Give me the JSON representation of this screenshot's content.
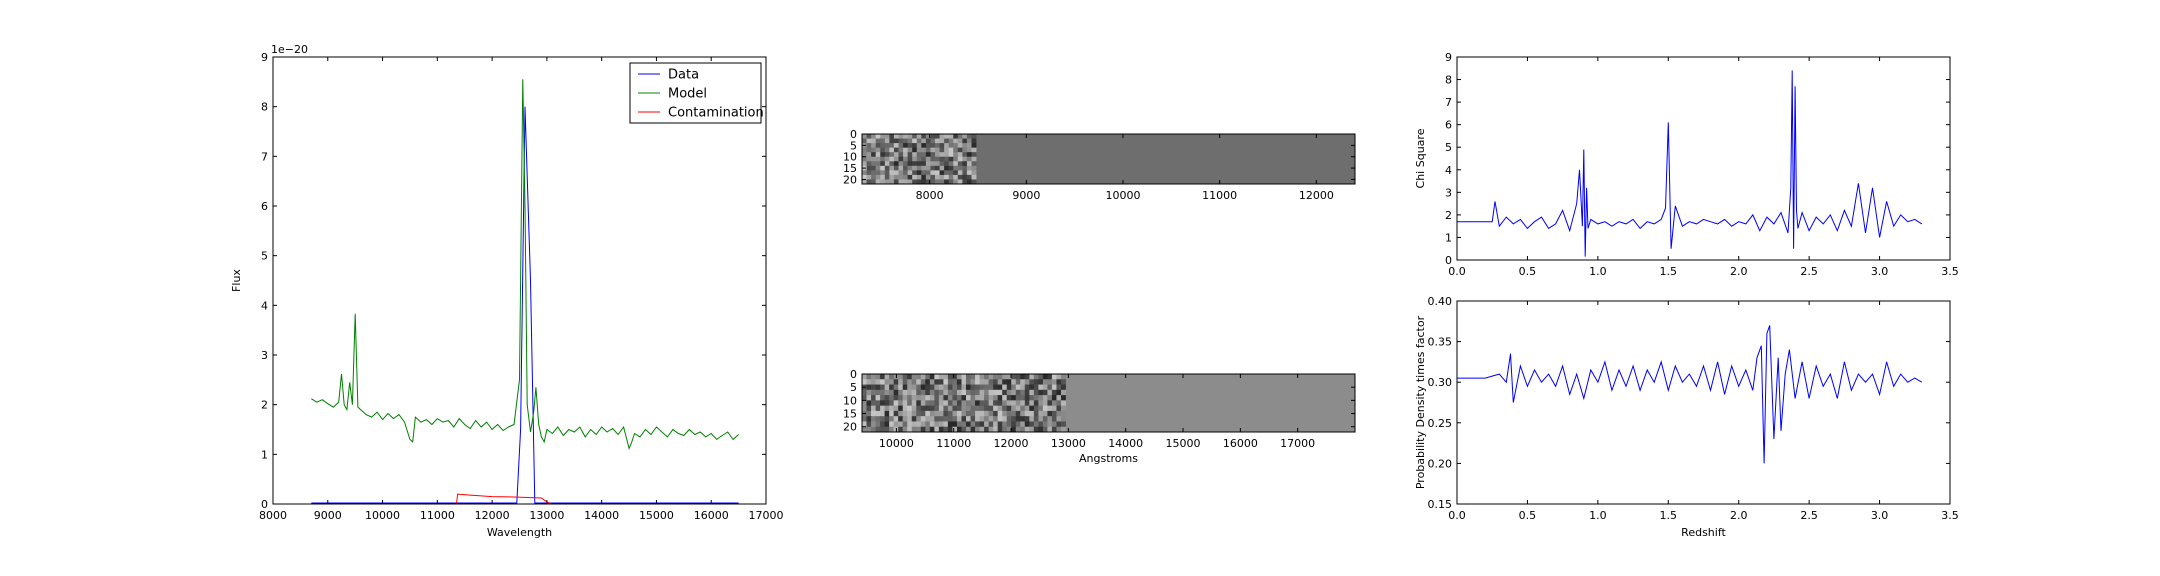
{
  "chart_data": [
    {
      "id": "spectrum",
      "type": "line",
      "xlabel": "Wavelength",
      "ylabel": "Flux",
      "offset_text": "1e−20",
      "xlim": [
        8000,
        17000
      ],
      "ylim": [
        0,
        9
      ],
      "xticks": [
        8000,
        9000,
        10000,
        11000,
        12000,
        13000,
        14000,
        15000,
        16000,
        17000
      ],
      "yticks": [
        0,
        1,
        2,
        3,
        4,
        5,
        6,
        7,
        8,
        9
      ],
      "legend": {
        "placement": "top-right",
        "entries": [
          "Data",
          "Model",
          "Contamination"
        ]
      },
      "series": [
        {
          "name": "Data",
          "color": "#0000ff",
          "x": [
            8700,
            12450,
            12520,
            12600,
            12700,
            12780,
            13000,
            16500
          ],
          "y": [
            0.02,
            0.02,
            1.5,
            8.0,
            4.5,
            0.02,
            0.02,
            0.02
          ]
        },
        {
          "name": "Model",
          "color": "#008000",
          "x": [
            8700,
            8800,
            8900,
            9000,
            9100,
            9200,
            9250,
            9300,
            9350,
            9400,
            9450,
            9500,
            9550,
            9600,
            9650,
            9700,
            9800,
            9900,
            10000,
            10100,
            10200,
            10300,
            10400,
            10500,
            10550,
            10600,
            10700,
            10800,
            10900,
            11000,
            11100,
            11200,
            11300,
            11400,
            11500,
            11600,
            11700,
            11800,
            11900,
            12000,
            12100,
            12200,
            12300,
            12400,
            12500,
            12560,
            12600,
            12640,
            12700,
            12760,
            12800,
            12850,
            12900,
            12950,
            13000,
            13100,
            13200,
            13300,
            13400,
            13500,
            13600,
            13700,
            13800,
            13900,
            14000,
            14100,
            14200,
            14300,
            14400,
            14500,
            14550,
            14600,
            14700,
            14800,
            14900,
            15000,
            15100,
            15200,
            15300,
            15400,
            15500,
            15600,
            15700,
            15800,
            15900,
            16000,
            16100,
            16200,
            16300,
            16400,
            16500
          ],
          "y": [
            2.12,
            2.05,
            2.1,
            2.02,
            1.95,
            2.05,
            2.62,
            2.0,
            1.9,
            2.45,
            2.0,
            3.83,
            1.95,
            1.9,
            1.85,
            1.8,
            1.75,
            1.85,
            1.7,
            1.82,
            1.72,
            1.8,
            1.65,
            1.3,
            1.25,
            1.75,
            1.65,
            1.7,
            1.6,
            1.72,
            1.65,
            1.68,
            1.55,
            1.72,
            1.6,
            1.52,
            1.68,
            1.55,
            1.65,
            1.5,
            1.6,
            1.48,
            1.55,
            1.6,
            2.5,
            8.55,
            6.0,
            2.0,
            1.45,
            1.85,
            2.35,
            1.6,
            1.35,
            1.25,
            1.5,
            1.42,
            1.55,
            1.38,
            1.5,
            1.45,
            1.55,
            1.35,
            1.5,
            1.4,
            1.55,
            1.45,
            1.52,
            1.4,
            1.55,
            1.12,
            1.25,
            1.42,
            1.35,
            1.5,
            1.4,
            1.55,
            1.45,
            1.35,
            1.5,
            1.42,
            1.38,
            1.5,
            1.4,
            1.45,
            1.35,
            1.42,
            1.3,
            1.38,
            1.45,
            1.3,
            1.4
          ]
        },
        {
          "name": "Contamination",
          "color": "#ff0000",
          "x": [
            8700,
            11350,
            11370,
            11600,
            12000,
            12400,
            12900,
            13000,
            13100,
            16500
          ],
          "y": [
            0.0,
            0.0,
            0.2,
            0.18,
            0.15,
            0.14,
            0.12,
            0.04,
            0.0,
            0.0
          ]
        }
      ]
    },
    {
      "id": "image-top",
      "type": "heatmap",
      "xlim": [
        7300,
        12400
      ],
      "ylim": [
        22,
        0
      ],
      "xticks": [
        8000,
        9000,
        10000,
        11000,
        12000
      ],
      "yticks": [
        0,
        5,
        10,
        15,
        20
      ],
      "xlabel": "",
      "noise_end": 8480,
      "background": "#6e6e6e"
    },
    {
      "id": "image-bottom",
      "type": "heatmap",
      "xlim": [
        9400,
        18000
      ],
      "ylim": [
        22,
        0
      ],
      "xticks": [
        10000,
        11000,
        12000,
        13000,
        14000,
        15000,
        16000,
        17000
      ],
      "yticks": [
        0,
        5,
        10,
        15,
        20
      ],
      "xlabel": "Angstroms",
      "noise_end": 12950,
      "background": "#8c8c8c"
    },
    {
      "id": "chisq",
      "type": "line",
      "xlabel": "",
      "ylabel": "Chi Square",
      "xlim": [
        0.0,
        3.5
      ],
      "ylim": [
        0,
        9
      ],
      "xticks": [
        0.0,
        0.5,
        1.0,
        1.5,
        2.0,
        2.5,
        3.0,
        3.5
      ],
      "yticks": [
        0,
        1,
        2,
        3,
        4,
        5,
        6,
        7,
        8,
        9
      ],
      "series": [
        {
          "color": "#0000ff",
          "x": [
            0.0,
            0.2,
            0.25,
            0.27,
            0.3,
            0.35,
            0.4,
            0.45,
            0.5,
            0.55,
            0.6,
            0.65,
            0.7,
            0.75,
            0.8,
            0.85,
            0.87,
            0.89,
            0.9,
            0.91,
            0.92,
            0.93,
            0.95,
            1.0,
            1.05,
            1.1,
            1.15,
            1.2,
            1.25,
            1.3,
            1.35,
            1.4,
            1.45,
            1.48,
            1.5,
            1.52,
            1.55,
            1.6,
            1.65,
            1.7,
            1.75,
            1.8,
            1.85,
            1.9,
            1.95,
            2.0,
            2.05,
            2.1,
            2.15,
            2.2,
            2.25,
            2.3,
            2.35,
            2.37,
            2.38,
            2.39,
            2.4,
            2.41,
            2.42,
            2.45,
            2.5,
            2.55,
            2.6,
            2.65,
            2.7,
            2.75,
            2.8,
            2.85,
            2.9,
            2.95,
            3.0,
            3.05,
            3.1,
            3.15,
            3.2,
            3.25,
            3.3
          ],
          "y": [
            1.7,
            1.7,
            1.7,
            2.6,
            1.5,
            1.9,
            1.6,
            1.8,
            1.4,
            1.7,
            1.9,
            1.4,
            1.6,
            2.2,
            1.3,
            2.5,
            4.0,
            1.5,
            4.9,
            0.15,
            3.2,
            1.4,
            1.8,
            1.6,
            1.7,
            1.5,
            1.7,
            1.6,
            1.8,
            1.4,
            1.7,
            1.6,
            1.8,
            2.3,
            6.1,
            0.5,
            2.4,
            1.5,
            1.7,
            1.6,
            1.8,
            1.7,
            1.6,
            1.8,
            1.5,
            1.7,
            1.6,
            2.0,
            1.3,
            1.9,
            1.6,
            2.1,
            1.2,
            3.2,
            8.4,
            0.5,
            7.7,
            2.2,
            1.4,
            2.1,
            1.3,
            1.9,
            1.6,
            2.0,
            1.3,
            2.2,
            1.5,
            3.4,
            1.2,
            3.2,
            1.0,
            2.6,
            1.5,
            2.0,
            1.7,
            1.8,
            1.6
          ]
        }
      ]
    },
    {
      "id": "pdf",
      "type": "line",
      "xlabel": "Redshift",
      "ylabel": "Probability Density times factor",
      "xlim": [
        0.0,
        3.5
      ],
      "ylim": [
        0.15,
        0.4
      ],
      "xticks": [
        0.0,
        0.5,
        1.0,
        1.5,
        2.0,
        2.5,
        3.0,
        3.5
      ],
      "yticks": [
        0.15,
        0.2,
        0.25,
        0.3,
        0.35,
        0.4
      ],
      "series": [
        {
          "color": "#0000ff",
          "x": [
            0.0,
            0.1,
            0.2,
            0.3,
            0.35,
            0.38,
            0.4,
            0.45,
            0.5,
            0.55,
            0.6,
            0.65,
            0.7,
            0.75,
            0.8,
            0.85,
            0.9,
            0.95,
            1.0,
            1.05,
            1.1,
            1.15,
            1.2,
            1.25,
            1.3,
            1.35,
            1.4,
            1.45,
            1.5,
            1.55,
            1.6,
            1.65,
            1.7,
            1.75,
            1.8,
            1.85,
            1.9,
            1.95,
            2.0,
            2.05,
            2.1,
            2.13,
            2.16,
            2.18,
            2.2,
            2.22,
            2.25,
            2.28,
            2.3,
            2.33,
            2.36,
            2.4,
            2.45,
            2.5,
            2.55,
            2.6,
            2.65,
            2.7,
            2.75,
            2.8,
            2.85,
            2.9,
            2.95,
            3.0,
            3.05,
            3.1,
            3.15,
            3.2,
            3.25,
            3.3
          ],
          "y": [
            0.305,
            0.305,
            0.305,
            0.31,
            0.3,
            0.335,
            0.275,
            0.32,
            0.295,
            0.315,
            0.3,
            0.31,
            0.295,
            0.32,
            0.285,
            0.31,
            0.28,
            0.315,
            0.3,
            0.325,
            0.29,
            0.315,
            0.295,
            0.32,
            0.29,
            0.315,
            0.3,
            0.325,
            0.29,
            0.32,
            0.3,
            0.31,
            0.295,
            0.32,
            0.29,
            0.325,
            0.285,
            0.32,
            0.295,
            0.315,
            0.29,
            0.33,
            0.345,
            0.2,
            0.36,
            0.37,
            0.23,
            0.33,
            0.24,
            0.31,
            0.34,
            0.28,
            0.325,
            0.28,
            0.32,
            0.295,
            0.31,
            0.28,
            0.325,
            0.29,
            0.31,
            0.3,
            0.31,
            0.285,
            0.325,
            0.295,
            0.31,
            0.3,
            0.305,
            0.3
          ]
        }
      ]
    }
  ]
}
